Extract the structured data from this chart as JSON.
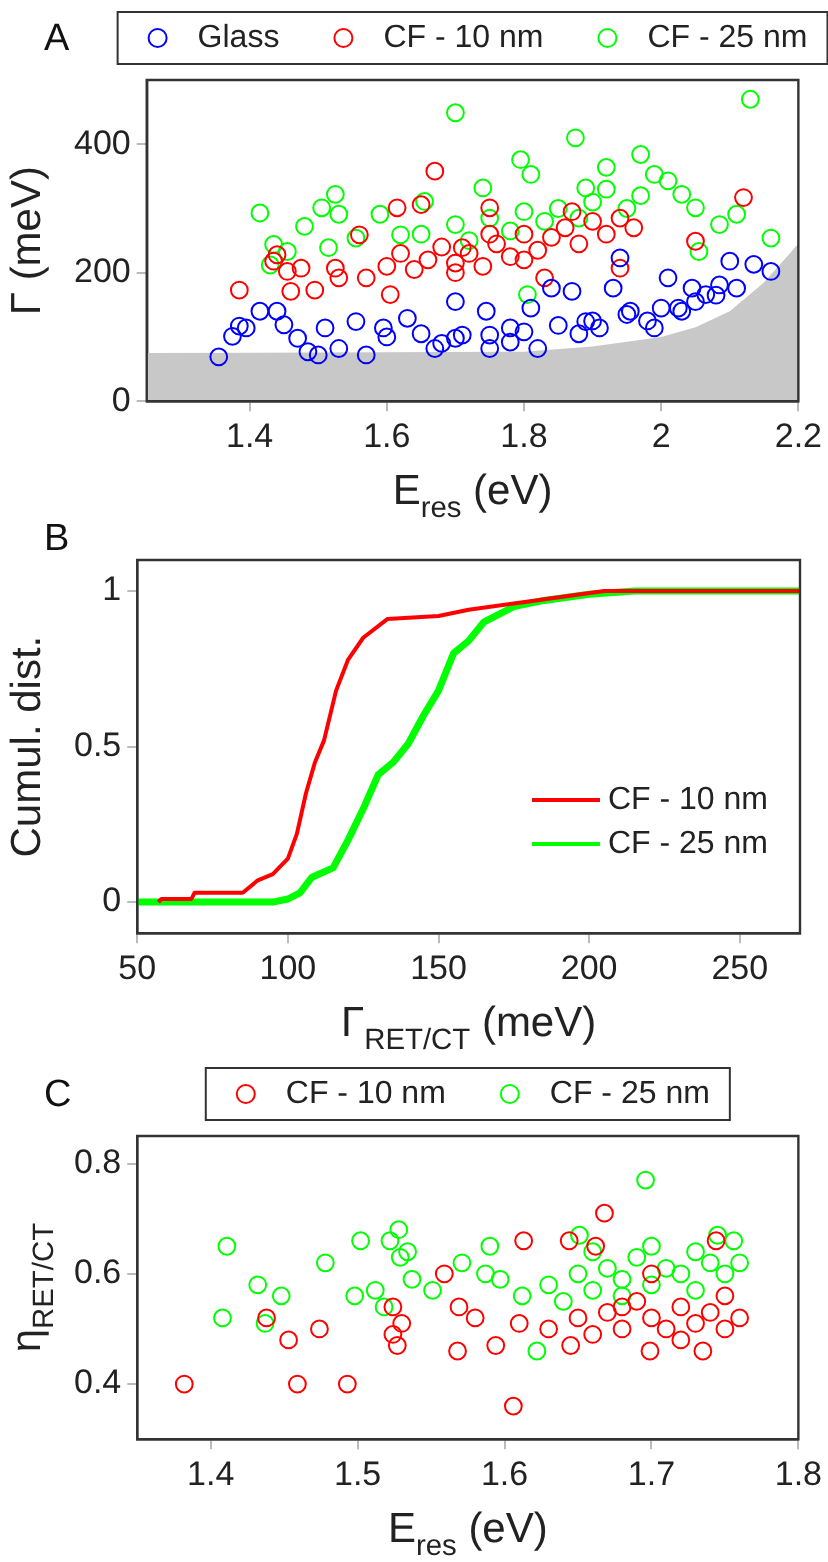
{
  "chart_data": [
    {
      "type": "scatter",
      "annotations": [
        "A"
      ],
      "xlabel": "E$_{res}$ (eV)",
      "ylabel": "Γ (meV)",
      "xlim": [
        1.25,
        2.2
      ],
      "ylim": [
        0,
        500
      ],
      "xticks": [
        1.4,
        1.6,
        1.8,
        2,
        2.2
      ],
      "yticks": [
        0,
        200,
        400
      ],
      "legend": "top",
      "series": [
        {
          "type": "area",
          "color": "#c8c8c8",
          "x": [
            1.25,
            1.8,
            1.9,
            2.0,
            2.05,
            2.1,
            2.15,
            2.2
          ],
          "values": [
            75,
            77,
            85,
            100,
            115,
            140,
            185,
            245
          ]
        },
        {
          "name": "Glass",
          "color": "#0000ff",
          "marker": "circle",
          "x": [
            1.355,
            1.375,
            1.385,
            1.395,
            1.415,
            1.44,
            1.45,
            1.47,
            1.485,
            1.5,
            1.51,
            1.53,
            1.555,
            1.57,
            1.595,
            1.63,
            1.67,
            1.7,
            1.71,
            1.745,
            1.75,
            1.78,
            1.81,
            1.82,
            1.84,
            1.87,
            1.89,
            1.91,
            1.93,
            1.94,
            1.955,
            1.99,
            2.01,
            2.025,
            2.045,
            2.065,
            2.085,
            2.1,
            2.11,
            2.135,
            2.16,
            1.6,
            1.65,
            1.7,
            1.75,
            1.8,
            1.85,
            1.9,
            1.95,
            2.0,
            2.05,
            2.08,
            1.68,
            1.78,
            1.88,
            1.98,
            2.03
          ],
          "values": [
            69,
            101,
            117,
            114,
            140,
            140,
            119,
            98,
            77,
            72,
            114,
            82,
            124,
            72,
            114,
            129,
            82,
            155,
            103,
            140,
            82,
            114,
            145,
            82,
            176,
            171,
            124,
            114,
            176,
            223,
            140,
            114,
            192,
            145,
            176,
            166,
            181,
            218,
            176,
            213,
            202,
            100,
            105,
            98,
            103,
            108,
            118,
            125,
            135,
            145,
            155,
            165,
            90,
            92,
            105,
            125,
            140
          ]
        },
        {
          "name": "CF - 10 nm",
          "color": "#ff0000",
          "marker": "circle",
          "x": [
            1.385,
            1.435,
            1.44,
            1.455,
            1.46,
            1.475,
            1.495,
            1.525,
            1.53,
            1.56,
            1.57,
            1.605,
            1.615,
            1.65,
            1.67,
            1.71,
            1.75,
            1.83,
            1.94,
            2.05,
            2.12,
            1.6,
            1.62,
            1.64,
            1.66,
            1.68,
            1.7,
            1.72,
            1.74,
            1.76,
            1.78,
            1.8,
            1.82,
            1.84,
            1.86,
            1.88,
            1.9,
            1.92,
            1.94,
            1.96,
            1.87,
            1.8,
            1.7,
            1.75
          ],
          "values": [
            173,
            218,
            228,
            202,
            171,
            207,
            173,
            207,
            192,
            259,
            192,
            166,
            301,
            306,
            358,
            239,
            301,
            192,
            207,
            249,
            317,
            210,
            230,
            205,
            220,
            240,
            215,
            230,
            210,
            245,
            225,
            260,
            235,
            255,
            270,
            245,
            280,
            260,
            285,
            270,
            295,
            220,
            200,
            260
          ]
        },
        {
          "name": "CF - 25 nm",
          "color": "#00ff00",
          "marker": "circle",
          "x": [
            1.415,
            1.435,
            1.43,
            1.455,
            1.48,
            1.505,
            1.525,
            1.53,
            1.515,
            1.555,
            1.59,
            1.62,
            1.655,
            1.7,
            1.74,
            1.795,
            1.81,
            1.83,
            1.805,
            1.875,
            1.89,
            1.92,
            1.97,
            1.99,
            2.01,
            2.03,
            2.05,
            2.055,
            2.085,
            2.11,
            2.13,
            2.16,
            1.65,
            1.7,
            1.75,
            1.8,
            1.85,
            1.9,
            1.95,
            1.72,
            1.78,
            1.88,
            1.92,
            1.97
          ],
          "values": [
            293,
            244,
            212,
            233,
            272,
            301,
            322,
            291,
            239,
            254,
            291,
            259,
            311,
            449,
            332,
            376,
            353,
            280,
            166,
            410,
            332,
            364,
            384,
            353,
            343,
            322,
            301,
            233,
            275,
            291,
            470,
            254,
            260,
            275,
            285,
            295,
            300,
            310,
            300,
            250,
            265,
            285,
            330,
            320
          ]
        }
      ]
    },
    {
      "type": "line",
      "annotations": [
        "B"
      ],
      "xlabel": "Γ$_{RET/CT}$ (meV)",
      "ylabel": "Cumul. dist.",
      "xlim": [
        50,
        270
      ],
      "ylim": [
        -0.1,
        1.1
      ],
      "xticks": [
        50,
        100,
        150,
        200,
        250
      ],
      "yticks": [
        0,
        0.5,
        1
      ],
      "legend": "bottom right",
      "series": [
        {
          "name": "CF - 10 nm",
          "color": "#ff0000",
          "x": [
            57,
            58,
            68,
            69,
            85,
            90,
            95,
            100,
            103,
            106,
            109,
            112,
            116,
            120,
            125,
            133,
            150,
            160,
            175,
            190,
            205,
            270
          ],
          "values": [
            0,
            0.01,
            0.01,
            0.03,
            0.03,
            0.07,
            0.09,
            0.14,
            0.22,
            0.35,
            0.45,
            0.52,
            0.68,
            0.78,
            0.85,
            0.91,
            0.92,
            0.94,
            0.96,
            0.98,
            1,
            1
          ]
        },
        {
          "name": "CF - 25 nm",
          "color": "#00ff00",
          "x": [
            50,
            95,
            100,
            104,
            108,
            115,
            120,
            125,
            130,
            135,
            140,
            145,
            150,
            155,
            160,
            165,
            175,
            185,
            200,
            215,
            270
          ],
          "values": [
            0,
            0,
            0.01,
            0.03,
            0.08,
            0.11,
            0.2,
            0.3,
            0.41,
            0.45,
            0.51,
            0.6,
            0.68,
            0.8,
            0.84,
            0.9,
            0.95,
            0.97,
            0.99,
            1,
            1
          ]
        }
      ]
    },
    {
      "type": "scatter",
      "annotations": [
        "C"
      ],
      "xlabel": "E$_{res}$ (eV)",
      "ylabel": "η$_{RET/CT}$",
      "xlim": [
        1.35,
        1.8
      ],
      "ylim": [
        0.3,
        0.85
      ],
      "xticks": [
        1.4,
        1.5,
        1.6,
        1.7,
        1.8
      ],
      "yticks": [
        0.4,
        0.6,
        0.8
      ],
      "legend": "top",
      "marker": "circle",
      "series": [
        {
          "name": "CF - 10 nm",
          "color": "#ff0000",
          "x": [
            1.382,
            1.438,
            1.453,
            1.459,
            1.474,
            1.493,
            1.524,
            1.524,
            1.527,
            1.53,
            1.559,
            1.568,
            1.569,
            1.58,
            1.594,
            1.606,
            1.613,
            1.645,
            1.644,
            1.662,
            1.668,
            1.699,
            1.735,
            1.744,
            1.61,
            1.63,
            1.65,
            1.66,
            1.67,
            1.68,
            1.69,
            1.7,
            1.71,
            1.72,
            1.73,
            1.74,
            1.75,
            1.76,
            1.68,
            1.7,
            1.72,
            1.75
          ],
          "values": [
            0.4,
            0.52,
            0.48,
            0.4,
            0.5,
            0.4,
            0.54,
            0.49,
            0.47,
            0.51,
            0.6,
            0.46,
            0.54,
            0.52,
            0.47,
            0.36,
            0.66,
            0.47,
            0.66,
            0.65,
            0.71,
            0.46,
            0.46,
            0.66,
            0.51,
            0.5,
            0.52,
            0.49,
            0.53,
            0.5,
            0.55,
            0.52,
            0.5,
            0.54,
            0.51,
            0.53,
            0.56,
            0.52,
            0.54,
            0.6,
            0.48,
            0.5
          ]
        },
        {
          "name": "CF - 25 nm",
          "color": "#00ff00",
          "x": [
            1.408,
            1.411,
            1.432,
            1.437,
            1.448,
            1.478,
            1.498,
            1.502,
            1.512,
            1.518,
            1.522,
            1.528,
            1.529,
            1.534,
            1.537,
            1.551,
            1.571,
            1.59,
            1.587,
            1.597,
            1.612,
            1.622,
            1.651,
            1.696,
            1.63,
            1.65,
            1.66,
            1.67,
            1.68,
            1.69,
            1.7,
            1.71,
            1.72,
            1.73,
            1.74,
            1.75,
            1.76,
            1.64,
            1.7,
            1.745,
            1.756,
            1.68,
            1.73,
            1.66
          ],
          "values": [
            0.52,
            0.65,
            0.58,
            0.51,
            0.56,
            0.62,
            0.56,
            0.66,
            0.57,
            0.54,
            0.66,
            0.68,
            0.63,
            0.64,
            0.59,
            0.57,
            0.62,
            0.65,
            0.6,
            0.59,
            0.56,
            0.46,
            0.67,
            0.77,
            0.58,
            0.6,
            0.57,
            0.61,
            0.59,
            0.63,
            0.58,
            0.61,
            0.6,
            0.57,
            0.62,
            0.6,
            0.62,
            0.55,
            0.65,
            0.67,
            0.66,
            0.56,
            0.64,
            0.64
          ]
        }
      ]
    }
  ]
}
